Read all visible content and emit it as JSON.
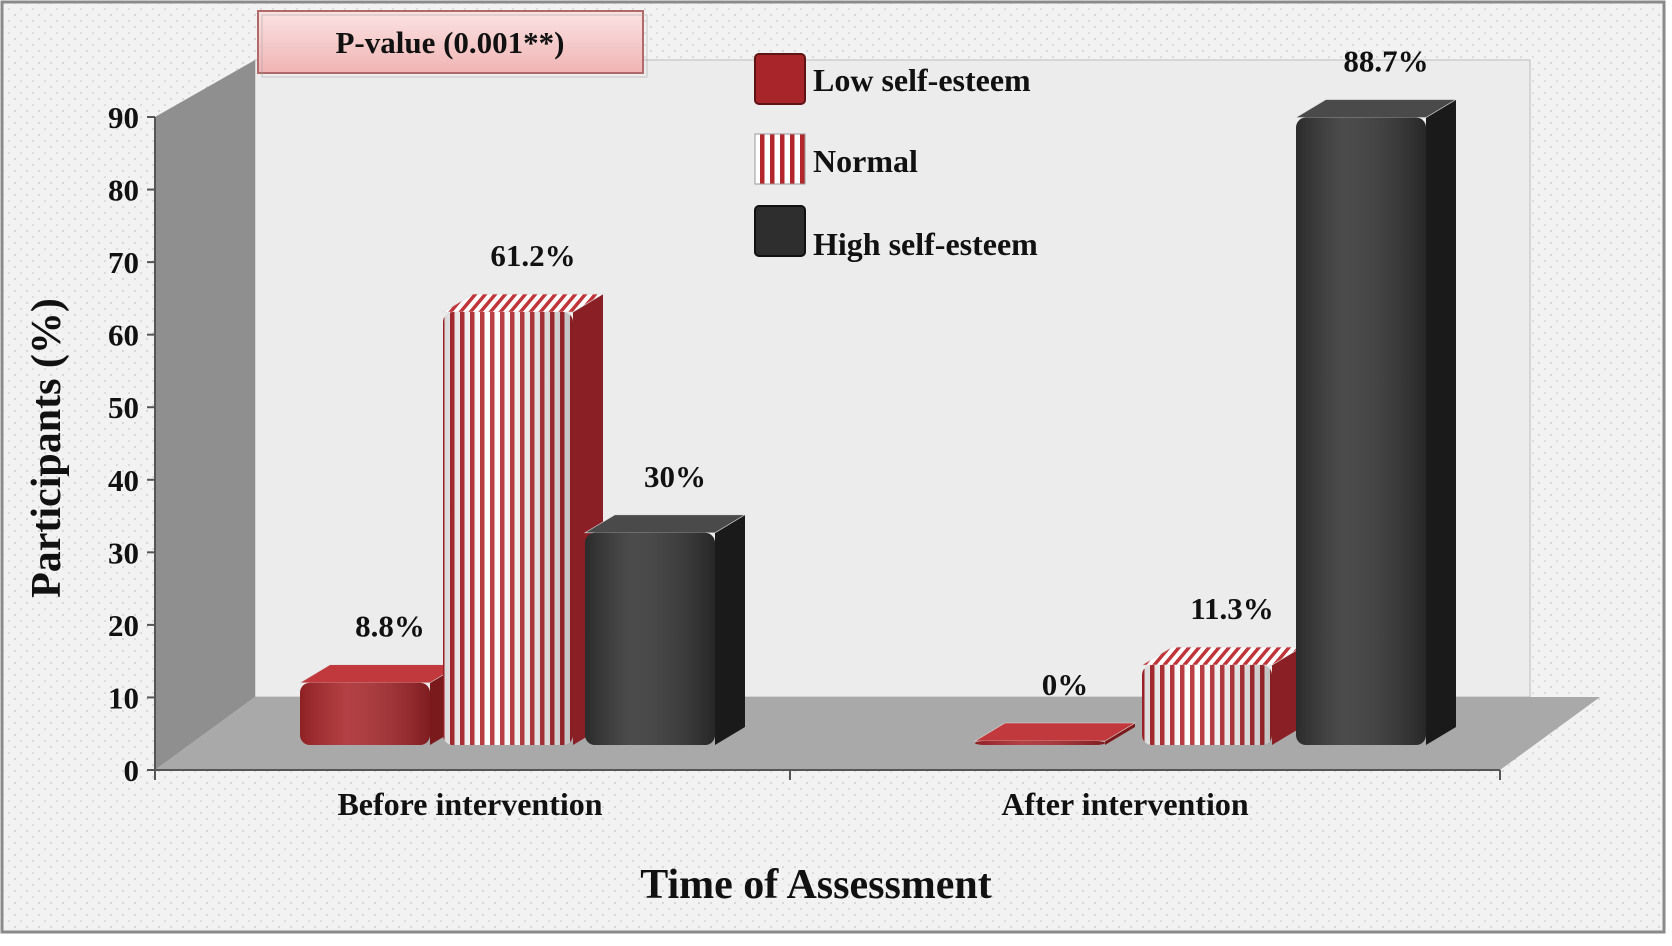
{
  "chart_data": {
    "type": "bar",
    "title": "",
    "annotation": "P-value (0.001**)",
    "xlabel": "Time of Assessment",
    "ylabel": "Participants (%)",
    "categories": [
      "Before intervention",
      "After intervention"
    ],
    "ylim": [
      0,
      90
    ],
    "yticks": [
      "0",
      "10",
      "20",
      "30",
      "40",
      "50",
      "60",
      "70",
      "80",
      "90"
    ],
    "grid": false,
    "legend_position": "top-center",
    "series": [
      {
        "name": "Low self-esteem",
        "values": [
          8.8,
          0
        ],
        "labels": [
          "8.8%",
          "0%"
        ],
        "color": "#a8262a",
        "pattern": "solid"
      },
      {
        "name": "Normal",
        "values": [
          61.2,
          11.3
        ],
        "labels": [
          "61.2%",
          "11.3%"
        ],
        "color": "#b3262c",
        "pattern": "stripes"
      },
      {
        "name": "High self-esteem",
        "values": [
          30,
          88.7
        ],
        "labels": [
          "30%",
          "88.7%"
        ],
        "color": "#333333",
        "pattern": "solid"
      }
    ]
  }
}
